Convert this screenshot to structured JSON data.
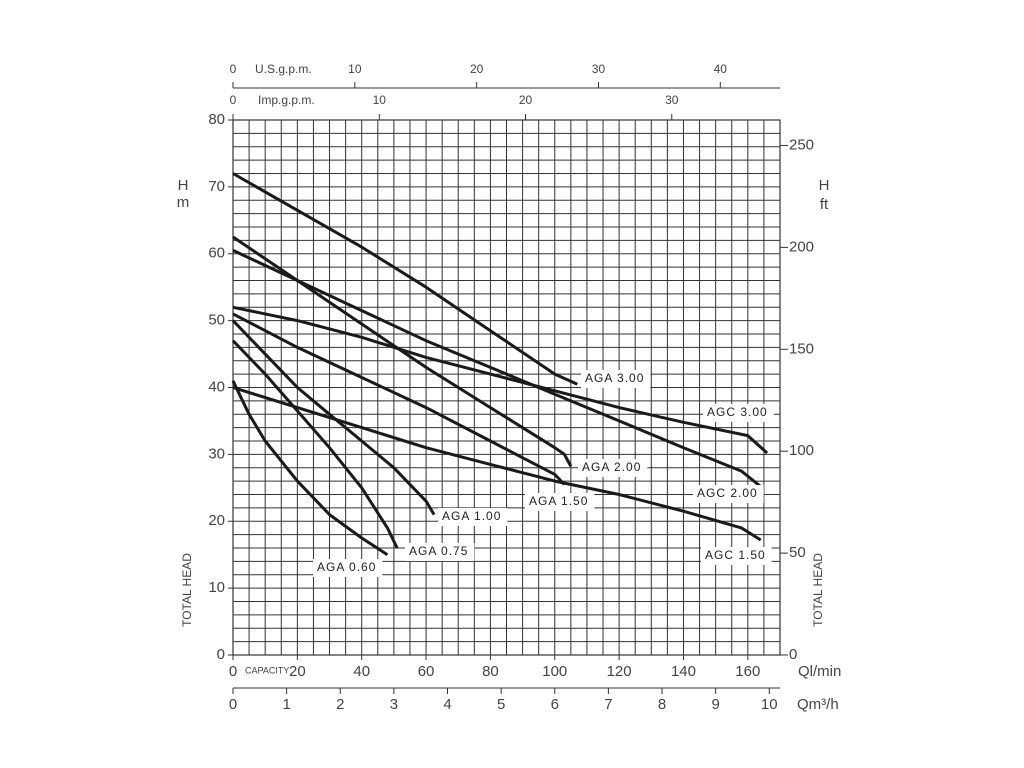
{
  "chart_data": {
    "type": "line",
    "color": "#1a1a1a",
    "grid": true,
    "xlabel": "Ql/min",
    "capacity_label": "CAPACITY",
    "y_symbol": "H",
    "ylabel": "m",
    "y2_symbol": "H",
    "y2label": "ft",
    "left_title": "TOTAL HEAD",
    "right_title": "TOTAL HEAD",
    "xlim": [
      0,
      170
    ],
    "xticks": [
      0,
      20,
      40,
      60,
      80,
      100,
      120,
      140,
      160
    ],
    "ylim": [
      0,
      80
    ],
    "yticks": [
      0,
      10,
      20,
      30,
      40,
      50,
      60,
      70,
      80
    ],
    "y2lim": [
      0,
      262.5
    ],
    "y2ticks": [
      0,
      50,
      100,
      150,
      200,
      250
    ],
    "secondary_x_axes": [
      {
        "label": "Qm³/h",
        "lim": [
          0,
          10.2
        ],
        "ticks": [
          0,
          1,
          2,
          3,
          4,
          5,
          6,
          7,
          8,
          9,
          10
        ]
      },
      {
        "label": "U.S.g.p.m.",
        "lim": [
          0,
          44.9
        ],
        "ticks": [
          0,
          10,
          20,
          30,
          40
        ]
      },
      {
        "label": "Imp.g.p.m.",
        "lim": [
          0,
          37.4
        ],
        "ticks": [
          0,
          10,
          20,
          30
        ]
      }
    ],
    "series": [
      {
        "name": "AGA 3.00",
        "x": [
          0,
          20,
          40,
          60,
          80,
          100,
          107
        ],
        "values": [
          72,
          66.5,
          61,
          55,
          48.5,
          42,
          40.5
        ]
      },
      {
        "name": "AGC 3.00",
        "x": [
          0,
          20,
          40,
          60,
          80,
          100,
          120,
          140,
          160,
          166
        ],
        "values": [
          52,
          50,
          47.5,
          44.5,
          42,
          39.5,
          37,
          34.8,
          32.8,
          30.2
        ]
      },
      {
        "name": "AGA 2.00",
        "x": [
          0,
          20,
          40,
          60,
          80,
          100,
          103,
          105
        ],
        "values": [
          62.5,
          56,
          49.5,
          43,
          37,
          31,
          30,
          28.2
        ]
      },
      {
        "name": "AGC 2.00",
        "x": [
          0,
          20,
          40,
          60,
          80,
          100,
          120,
          140,
          158,
          164.5
        ],
        "values": [
          60.5,
          56,
          51.5,
          47,
          43,
          39,
          35,
          31,
          27.5,
          25
        ]
      },
      {
        "name": "AGA 1.50",
        "x": [
          0,
          20,
          40,
          60,
          80,
          100,
          103
        ],
        "values": [
          51,
          46,
          41.5,
          37,
          32,
          27,
          25.5
        ]
      },
      {
        "name": "AGC 1.50",
        "x": [
          0,
          20,
          40,
          60,
          80,
          100,
          120,
          140,
          158,
          164
        ],
        "values": [
          40,
          37,
          34,
          31,
          28.5,
          26,
          24,
          21.5,
          19,
          17.2
        ]
      },
      {
        "name": "AGA 1.00",
        "x": [
          0,
          10,
          20,
          30,
          40,
          50,
          60,
          62.5
        ],
        "values": [
          50,
          45,
          40,
          36,
          32,
          28,
          23,
          21
        ]
      },
      {
        "name": "AGA 0.75",
        "x": [
          0,
          10,
          20,
          30,
          40,
          48,
          50,
          51
        ],
        "values": [
          47,
          42,
          36.5,
          31,
          25,
          19,
          17,
          16
        ]
      },
      {
        "name": "AGA 0.60",
        "x": [
          0,
          5,
          10,
          15,
          20,
          30,
          40,
          48
        ],
        "values": [
          41,
          36,
          32,
          29,
          26,
          21,
          17.5,
          15
        ]
      }
    ]
  }
}
